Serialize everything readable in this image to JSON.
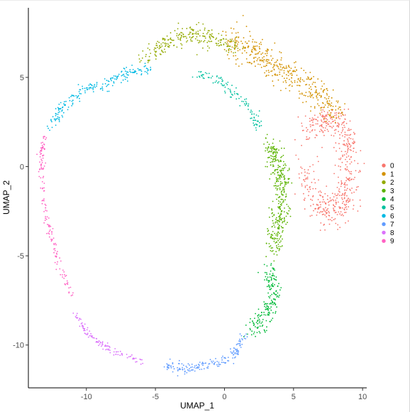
{
  "chart_data": {
    "type": "scatter",
    "title": "",
    "xlabel": "UMAP_1",
    "ylabel": "UMAP_2",
    "xlim": [
      -14.2,
      10.3
    ],
    "ylim": [
      -12.4,
      8.9
    ],
    "x_ticks": [
      -10,
      -5,
      0,
      5,
      10
    ],
    "y_ticks": [
      -10,
      -5,
      0,
      5
    ],
    "grid": false,
    "legend_position": "right",
    "series": [
      {
        "name": "0",
        "color": "#F8766D",
        "path": [
          [
            6.0,
            1.8
          ],
          [
            7.5,
            2.8
          ],
          [
            8.8,
            2.0
          ],
          [
            9.0,
            0
          ],
          [
            8.8,
            -1.8
          ],
          [
            7.5,
            -2.6
          ],
          [
            6.2,
            -1.8
          ],
          [
            6.0,
            0
          ]
        ],
        "spread": 0.75,
        "count": 520
      },
      {
        "name": "1",
        "color": "#D39200",
        "path": [
          [
            0.5,
            7.0
          ],
          [
            2.5,
            6.3
          ],
          [
            4.5,
            5.3
          ],
          [
            6.5,
            4.2
          ],
          [
            8.2,
            2.9
          ]
        ],
        "spread": 0.7,
        "count": 420
      },
      {
        "name": "2",
        "color": "#93AA00",
        "path": [
          [
            -5.8,
            6.1
          ],
          [
            -4.2,
            6.9
          ],
          [
            -2.5,
            7.5
          ],
          [
            -1.0,
            7.2
          ],
          [
            0.8,
            6.6
          ]
        ],
        "spread": 0.45,
        "count": 240
      },
      {
        "name": "3",
        "color": "#5BB300",
        "path": [
          [
            3.2,
            1.2
          ],
          [
            4.0,
            0
          ],
          [
            4.2,
            -1.5
          ],
          [
            4.0,
            -3.0
          ],
          [
            3.6,
            -4.6
          ]
        ],
        "spread": 0.55,
        "count": 360
      },
      {
        "name": "4",
        "color": "#00BA38",
        "path": [
          [
            3.2,
            -5.8
          ],
          [
            3.6,
            -7.0
          ],
          [
            3.0,
            -8.3
          ],
          [
            1.8,
            -9.2
          ]
        ],
        "spread": 0.45,
        "count": 190
      },
      {
        "name": "5",
        "color": "#00C19F",
        "path": [
          [
            -2.0,
            5.3
          ],
          [
            0.0,
            4.6
          ],
          [
            1.5,
            3.6
          ],
          [
            2.6,
            2.1
          ]
        ],
        "spread": 0.3,
        "count": 110
      },
      {
        "name": "6",
        "color": "#00B9E3",
        "path": [
          [
            -12.6,
            2.3
          ],
          [
            -11.7,
            3.4
          ],
          [
            -10.4,
            4.2
          ],
          [
            -8.7,
            4.7
          ],
          [
            -7.0,
            5.2
          ],
          [
            -5.5,
            5.5
          ]
        ],
        "spread": 0.3,
        "count": 200
      },
      {
        "name": "7",
        "color": "#619CFF",
        "path": [
          [
            1.5,
            -9.4
          ],
          [
            0.6,
            -10.7
          ],
          [
            -1.2,
            -11.1
          ],
          [
            -3.0,
            -11.3
          ],
          [
            -4.3,
            -11.1
          ]
        ],
        "spread": 0.25,
        "count": 170
      },
      {
        "name": "8",
        "color": "#DB72FB",
        "path": [
          [
            -6.0,
            -10.9
          ],
          [
            -8.0,
            -10.4
          ],
          [
            -9.8,
            -9.5
          ],
          [
            -10.8,
            -8.2
          ]
        ],
        "spread": 0.18,
        "count": 110
      },
      {
        "name": "9",
        "color": "#FF61C3",
        "path": [
          [
            -11.0,
            -7.3
          ],
          [
            -12.0,
            -5.5
          ],
          [
            -12.7,
            -3.5
          ],
          [
            -13.1,
            -1.5
          ],
          [
            -13.3,
            0.5
          ],
          [
            -13.0,
            1.8
          ]
        ],
        "spread": 0.18,
        "count": 150
      }
    ]
  }
}
